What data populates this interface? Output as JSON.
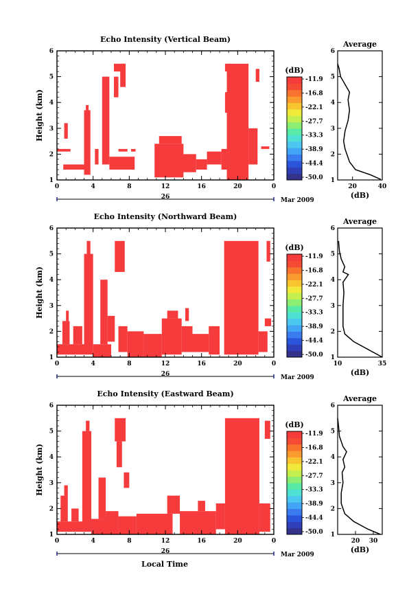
{
  "figure": {
    "bottom_xlabel": "Local Time",
    "date_center": "26",
    "date_label": "Mar 2009"
  },
  "colorbar": {
    "unit": "(dB)",
    "tick_labels": [
      "-11.9",
      "-16.8",
      "-22.1",
      "-27.7",
      "-33.3",
      "-38.9",
      "-44.4",
      "-50.0"
    ],
    "colors": [
      "#33338c",
      "#2f3fb8",
      "#2b56dc",
      "#3a7cf0",
      "#42a4f5",
      "#4cc7ef",
      "#4fe0d4",
      "#5aeaa8",
      "#8cee72",
      "#c4ef4e",
      "#f2ea3a",
      "#f8c530",
      "#f99b2e",
      "#f8732e",
      "#f54a34",
      "#f53b3b"
    ]
  },
  "chart_data": [
    {
      "type": "heatmap",
      "title": "Echo Intensity (Vertical Beam)",
      "ylabel": "Height (km)",
      "xlabel": "",
      "x_ticks": [
        "0",
        "4",
        "8",
        "12",
        "16",
        "20",
        "0"
      ],
      "y_ticks": [
        "1",
        "2",
        "3",
        "4",
        "5",
        "6"
      ],
      "xlim": [
        0,
        24
      ],
      "ylim": [
        1,
        6
      ],
      "value_color": "#f53b3b",
      "filled_regions": [
        {
          "t": [
            0,
            1.5
          ],
          "h": [
            2.1,
            2.2
          ]
        },
        {
          "t": [
            0.8,
            1.2
          ],
          "h": [
            2.6,
            3.2
          ]
        },
        {
          "t": [
            0.7,
            3.2
          ],
          "h": [
            1.4,
            1.6
          ]
        },
        {
          "t": [
            3.0,
            3.7
          ],
          "h": [
            1.2,
            3.7
          ]
        },
        {
          "t": [
            3.2,
            3.5
          ],
          "h": [
            3.5,
            3.9
          ]
        },
        {
          "t": [
            4.2,
            4.6
          ],
          "h": [
            1.6,
            2.2
          ]
        },
        {
          "t": [
            5.0,
            5.8
          ],
          "h": [
            1.6,
            5.0
          ]
        },
        {
          "t": [
            5.8,
            8.6
          ],
          "h": [
            1.4,
            1.9
          ]
        },
        {
          "t": [
            6.8,
            7.8
          ],
          "h": [
            2.1,
            2.2
          ]
        },
        {
          "t": [
            6.3,
            6.8
          ],
          "h": [
            4.2,
            5.0
          ]
        },
        {
          "t": [
            6.3,
            7.5
          ],
          "h": [
            5.2,
            5.5
          ]
        },
        {
          "t": [
            7.0,
            7.6
          ],
          "h": [
            4.6,
            5.5
          ]
        },
        {
          "t": [
            8.2,
            8.7
          ],
          "h": [
            2.1,
            2.2
          ]
        },
        {
          "t": [
            10.8,
            14.0
          ],
          "h": [
            1.1,
            2.4
          ]
        },
        {
          "t": [
            11.3,
            13.8
          ],
          "h": [
            2.4,
            2.7
          ]
        },
        {
          "t": [
            13.8,
            15.4
          ],
          "h": [
            1.3,
            2.0
          ]
        },
        {
          "t": [
            15.4,
            16.6
          ],
          "h": [
            1.4,
            1.8
          ]
        },
        {
          "t": [
            16.6,
            18.2
          ],
          "h": [
            1.6,
            2.1
          ]
        },
        {
          "t": [
            18.2,
            18.8
          ],
          "h": [
            1.4,
            2.2
          ]
        },
        {
          "t": [
            18.6,
            19.0
          ],
          "h": [
            3.6,
            4.4
          ]
        },
        {
          "t": [
            18.6,
            19.2
          ],
          "h": [
            5.2,
            5.5
          ]
        },
        {
          "t": [
            18.8,
            21.2
          ],
          "h": [
            1.0,
            5.5
          ]
        },
        {
          "t": [
            21.2,
            22.2
          ],
          "h": [
            1.6,
            3.0
          ]
        },
        {
          "t": [
            22.0,
            22.4
          ],
          "h": [
            4.8,
            5.3
          ]
        },
        {
          "t": [
            22.6,
            23.5
          ],
          "h": [
            2.2,
            2.3
          ]
        }
      ],
      "avg_profile": {
        "xlabel": "(dB)",
        "title": "Average",
        "xlim": [
          10,
          40
        ],
        "x_ticks": [
          "20",
          "40"
        ],
        "y_ticks": [
          "1",
          "2",
          "3",
          "4",
          "5",
          "6"
        ],
        "points": [
          [
            39,
            1.02
          ],
          [
            32,
            1.2
          ],
          [
            22,
            1.4
          ],
          [
            18,
            1.7
          ],
          [
            15,
            2.2
          ],
          [
            14,
            2.5
          ],
          [
            15,
            2.9
          ],
          [
            17,
            3.3
          ],
          [
            18,
            3.7
          ],
          [
            17,
            4.1
          ],
          [
            18,
            4.4
          ],
          [
            15,
            4.7
          ],
          [
            12,
            5.0
          ],
          [
            11,
            5.3
          ],
          [
            10,
            5.5
          ]
        ]
      }
    },
    {
      "type": "heatmap",
      "title": "Echo Intensity (Northward Beam)",
      "ylabel": "Height (km)",
      "xlabel": "",
      "x_ticks": [
        "0",
        "4",
        "8",
        "12",
        "16",
        "20",
        "0"
      ],
      "y_ticks": [
        "1",
        "2",
        "3",
        "4",
        "5",
        "6"
      ],
      "xlim": [
        0,
        24
      ],
      "ylim": [
        1,
        6
      ],
      "value_color": "#f53b3b",
      "filled_regions": [
        {
          "t": [
            0.0,
            3.0
          ],
          "h": [
            1.1,
            1.5
          ]
        },
        {
          "t": [
            0.6,
            1.4
          ],
          "h": [
            1.5,
            2.4
          ]
        },
        {
          "t": [
            1.0,
            1.3
          ],
          "h": [
            2.4,
            2.8
          ]
        },
        {
          "t": [
            1.8,
            2.8
          ],
          "h": [
            1.5,
            2.2
          ]
        },
        {
          "t": [
            3.0,
            4.0
          ],
          "h": [
            1.1,
            5.0
          ]
        },
        {
          "t": [
            3.3,
            3.7
          ],
          "h": [
            4.8,
            5.5
          ]
        },
        {
          "t": [
            4.0,
            6.0
          ],
          "h": [
            1.0,
            1.5
          ]
        },
        {
          "t": [
            4.8,
            5.6
          ],
          "h": [
            1.5,
            4.0
          ]
        },
        {
          "t": [
            5.6,
            6.4
          ],
          "h": [
            1.6,
            2.6
          ]
        },
        {
          "t": [
            6.4,
            7.5
          ],
          "h": [
            4.3,
            5.5
          ]
        },
        {
          "t": [
            6.8,
            7.8
          ],
          "h": [
            1.2,
            2.2
          ]
        },
        {
          "t": [
            7.8,
            9.6
          ],
          "h": [
            1.0,
            2.0
          ]
        },
        {
          "t": [
            9.6,
            11.6
          ],
          "h": [
            1.0,
            1.9
          ]
        },
        {
          "t": [
            11.6,
            13.8
          ],
          "h": [
            1.1,
            2.5
          ]
        },
        {
          "t": [
            12.2,
            13.4
          ],
          "h": [
            2.5,
            2.8
          ]
        },
        {
          "t": [
            13.8,
            15.0
          ],
          "h": [
            1.2,
            2.2
          ]
        },
        {
          "t": [
            14.2,
            14.6
          ],
          "h": [
            2.4,
            2.9
          ]
        },
        {
          "t": [
            15.0,
            16.8
          ],
          "h": [
            1.2,
            1.9
          ]
        },
        {
          "t": [
            16.8,
            18.0
          ],
          "h": [
            1.1,
            2.2
          ]
        },
        {
          "t": [
            18.5,
            22.3
          ],
          "h": [
            1.1,
            5.5
          ]
        },
        {
          "t": [
            22.3,
            23.3
          ],
          "h": [
            1.2,
            2.0
          ]
        },
        {
          "t": [
            23.0,
            23.7
          ],
          "h": [
            2.2,
            2.5
          ]
        },
        {
          "t": [
            23.2,
            23.6
          ],
          "h": [
            4.7,
            5.5
          ]
        }
      ],
      "avg_profile": {
        "xlabel": "(dB)",
        "title": "Average",
        "xlim": [
          10,
          35
        ],
        "x_ticks": [
          "10",
          "35"
        ],
        "y_ticks": [
          "1",
          "2",
          "3",
          "4",
          "5",
          "6"
        ],
        "points": [
          [
            35,
            1.0
          ],
          [
            27,
            1.3
          ],
          [
            19,
            1.6
          ],
          [
            14,
            1.9
          ],
          [
            13,
            2.2
          ],
          [
            13,
            2.6
          ],
          [
            13,
            3.0
          ],
          [
            13.5,
            3.5
          ],
          [
            13,
            3.9
          ],
          [
            16,
            4.2
          ],
          [
            13,
            4.3
          ],
          [
            14,
            4.5
          ],
          [
            12,
            4.8
          ],
          [
            11,
            5.1
          ],
          [
            10.5,
            5.5
          ]
        ]
      }
    },
    {
      "type": "heatmap",
      "title": "Echo Intensity (Eastward Beam)",
      "ylabel": "Height (km)",
      "xlabel": "Local Time",
      "x_ticks": [
        "0",
        "4",
        "8",
        "12",
        "16",
        "20",
        "0"
      ],
      "y_ticks": [
        "1",
        "2",
        "3",
        "4",
        "5",
        "6"
      ],
      "xlim": [
        0,
        24
      ],
      "ylim": [
        1,
        6
      ],
      "value_color": "#f53b3b",
      "filled_regions": [
        {
          "t": [
            0.0,
            3.2
          ],
          "h": [
            1.1,
            1.5
          ]
        },
        {
          "t": [
            0.4,
            1.2
          ],
          "h": [
            1.5,
            2.5
          ]
        },
        {
          "t": [
            0.8,
            1.2
          ],
          "h": [
            2.5,
            2.9
          ]
        },
        {
          "t": [
            1.6,
            2.4
          ],
          "h": [
            1.5,
            2.0
          ]
        },
        {
          "t": [
            2.8,
            3.8
          ],
          "h": [
            1.1,
            5.0
          ]
        },
        {
          "t": [
            3.2,
            3.6
          ],
          "h": [
            5.0,
            5.4
          ]
        },
        {
          "t": [
            3.8,
            5.8
          ],
          "h": [
            1.0,
            1.6
          ]
        },
        {
          "t": [
            4.6,
            5.4
          ],
          "h": [
            1.6,
            3.2
          ]
        },
        {
          "t": [
            5.4,
            6.8
          ],
          "h": [
            1.0,
            1.9
          ]
        },
        {
          "t": [
            6.4,
            7.6
          ],
          "h": [
            4.6,
            5.5
          ]
        },
        {
          "t": [
            6.6,
            7.2
          ],
          "h": [
            3.6,
            4.6
          ]
        },
        {
          "t": [
            7.4,
            8.0
          ],
          "h": [
            2.8,
            3.4
          ]
        },
        {
          "t": [
            6.8,
            8.8
          ],
          "h": [
            1.0,
            1.7
          ]
        },
        {
          "t": [
            8.8,
            12.8
          ],
          "h": [
            1.0,
            1.8
          ]
        },
        {
          "t": [
            12.2,
            13.6
          ],
          "h": [
            1.8,
            2.5
          ]
        },
        {
          "t": [
            13.6,
            17.6
          ],
          "h": [
            1.0,
            1.9
          ]
        },
        {
          "t": [
            15.6,
            16.4
          ],
          "h": [
            1.9,
            2.3
          ]
        },
        {
          "t": [
            17.6,
            18.6
          ],
          "h": [
            1.2,
            2.2
          ]
        },
        {
          "t": [
            18.6,
            22.4
          ],
          "h": [
            1.0,
            5.5
          ]
        },
        {
          "t": [
            22.4,
            23.6
          ],
          "h": [
            1.1,
            2.2
          ]
        },
        {
          "t": [
            23.0,
            23.6
          ],
          "h": [
            4.7,
            5.4
          ]
        }
      ],
      "avg_profile": {
        "xlabel": "(dB)",
        "title": "Average",
        "xlim": [
          10,
          35
        ],
        "x_ticks": [
          "20",
          "30"
        ],
        "y_ticks": [
          "1",
          "2",
          "3",
          "4",
          "5",
          "6"
        ],
        "points": [
          [
            34,
            1.0
          ],
          [
            27,
            1.2
          ],
          [
            19,
            1.5
          ],
          [
            14,
            1.8
          ],
          [
            12,
            2.2
          ],
          [
            12,
            2.6
          ],
          [
            13,
            3.0
          ],
          [
            12.5,
            3.4
          ],
          [
            14,
            3.6
          ],
          [
            13,
            3.9
          ],
          [
            15,
            4.2
          ],
          [
            13,
            4.4
          ],
          [
            11,
            4.8
          ],
          [
            10.5,
            5.2
          ],
          [
            10,
            5.5
          ]
        ]
      }
    }
  ]
}
